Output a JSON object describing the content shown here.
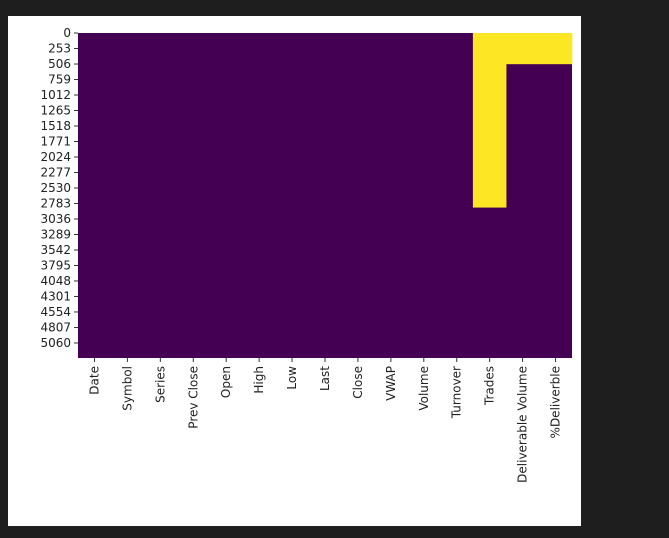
{
  "chart_data": {
    "type": "heatmap",
    "title": "",
    "xlabel": "",
    "ylabel": "",
    "x_categories": [
      "Date",
      "Symbol",
      "Series",
      "Prev Close",
      "Open",
      "High",
      "Low",
      "Last",
      "Close",
      "VWAP",
      "Volume",
      "Turnover",
      "Trades",
      "Deliverable Volume",
      "%Deliverble"
    ],
    "y_ticks": [
      0,
      253,
      506,
      759,
      1012,
      1265,
      1518,
      1771,
      2024,
      2277,
      2530,
      2783,
      3036,
      3289,
      3542,
      3795,
      4048,
      4301,
      4554,
      4807,
      5060
    ],
    "n_rows": 5306,
    "missing_ranges": [
      {
        "column": "Trades",
        "start": 0,
        "end": 2850
      },
      {
        "column": "Deliverable Volume",
        "start": 0,
        "end": 509
      },
      {
        "column": "%Deliverble",
        "start": 0,
        "end": 509
      }
    ],
    "colors": {
      "present": "#440154",
      "missing": "#fde725"
    },
    "colorbar": false,
    "grid": false,
    "legend": "none"
  }
}
